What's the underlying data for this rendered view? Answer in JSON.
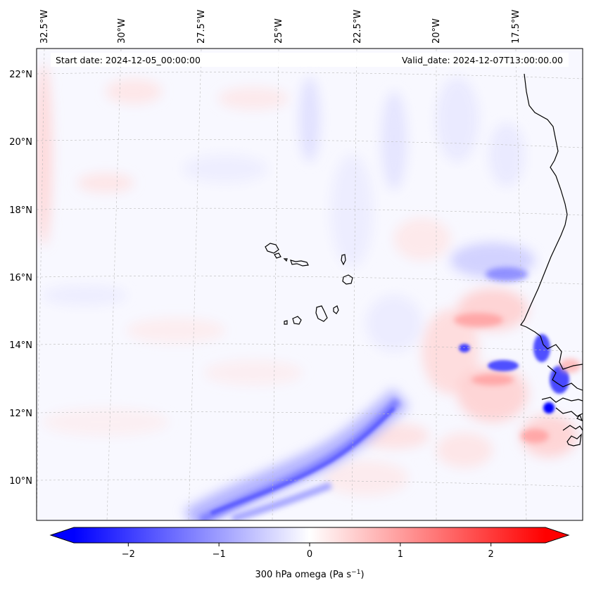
{
  "header": {
    "start_date": "Start date: 2024-12-05_00:00:00",
    "valid_date": "Valid_date: 2024-12-07T13:00:00.00"
  },
  "top_longitude_labels": [
    "32.5°W",
    "30°W",
    "27.5°W",
    "25°W",
    "22.5°W",
    "20°W",
    "17.5°W"
  ],
  "left_latitude_labels": [
    "22°N",
    "20°N",
    "18°N",
    "16°N",
    "14°N",
    "12°N",
    "10°N"
  ],
  "colorbar": {
    "ticks": [
      "−2",
      "−1",
      "0",
      "1",
      "2"
    ],
    "tick_values": [
      -2,
      -1,
      0,
      1,
      2
    ],
    "range": [
      -2.6,
      2.6
    ],
    "label": "300 hPa omega (Pa s",
    "label_sup": "−1",
    "label_end": ")",
    "colors": {
      "min": "#0000ff",
      "mid": "#ffffff",
      "max": "#ff0000"
    },
    "extend": "both"
  },
  "map": {
    "field": "omega",
    "background": "#f8f8ff",
    "coastline_color": "#000000",
    "gridline_color": "#bbbbbb",
    "islands": [
      "Santo Antão",
      "São Vicente",
      "São Nicolau",
      "Sal",
      "Boa Vista",
      "Maio",
      "Santiago",
      "Fogo",
      "Brava"
    ]
  }
}
